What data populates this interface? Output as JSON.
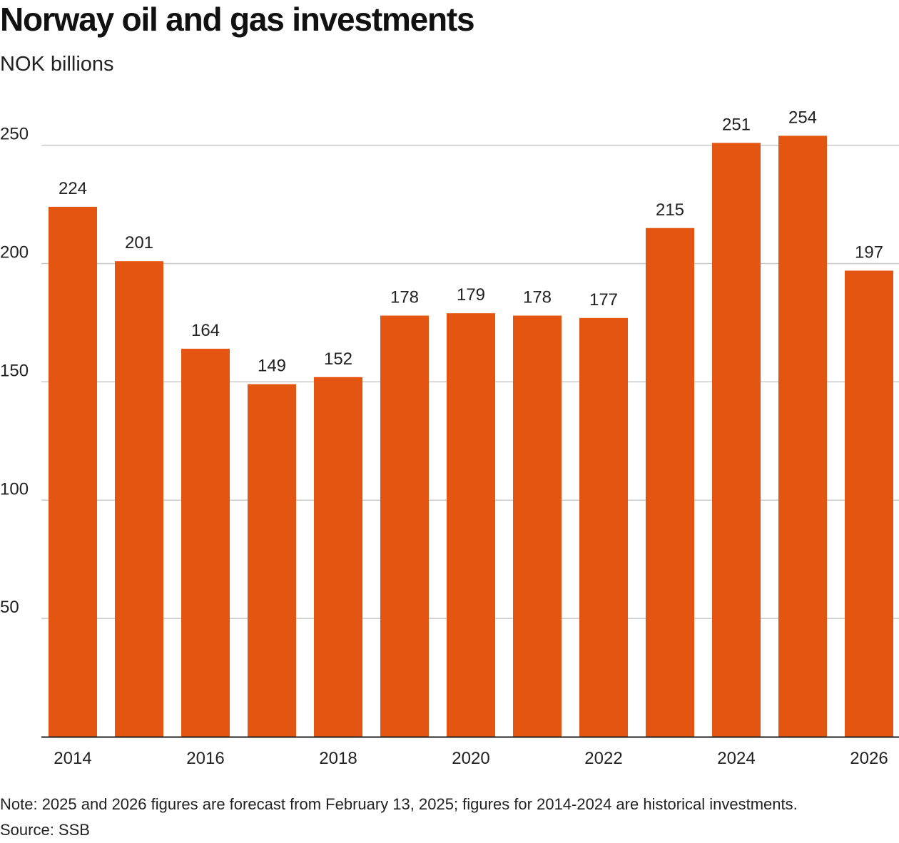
{
  "title": "Norway oil and gas investments",
  "subtitle": "NOK billions",
  "note": "Note: 2025 and 2026 figures are forecast from February 13, 2025; figures for 2014-2024 are historical investments.",
  "source": "Source: SSB",
  "colors": {
    "bar": "#e35510",
    "gridline": "#c8c8c8",
    "axis": "#222222",
    "text": "#222222"
  },
  "chart_data": {
    "type": "bar",
    "categories": [
      "2014",
      "2015",
      "2016",
      "2017",
      "2018",
      "2019",
      "2020",
      "2021",
      "2022",
      "2023",
      "2024",
      "2025",
      "2026"
    ],
    "values": [
      224,
      201,
      164,
      149,
      152,
      178,
      179,
      178,
      177,
      215,
      251,
      254,
      197
    ],
    "x_tick_labels": [
      "2014",
      "2016",
      "2018",
      "2020",
      "2022",
      "2024",
      "2026"
    ],
    "y_ticks": [
      50,
      100,
      150,
      200,
      250
    ],
    "ylim": [
      0,
      254
    ],
    "grid": true,
    "data_labels": true,
    "legend": false
  }
}
